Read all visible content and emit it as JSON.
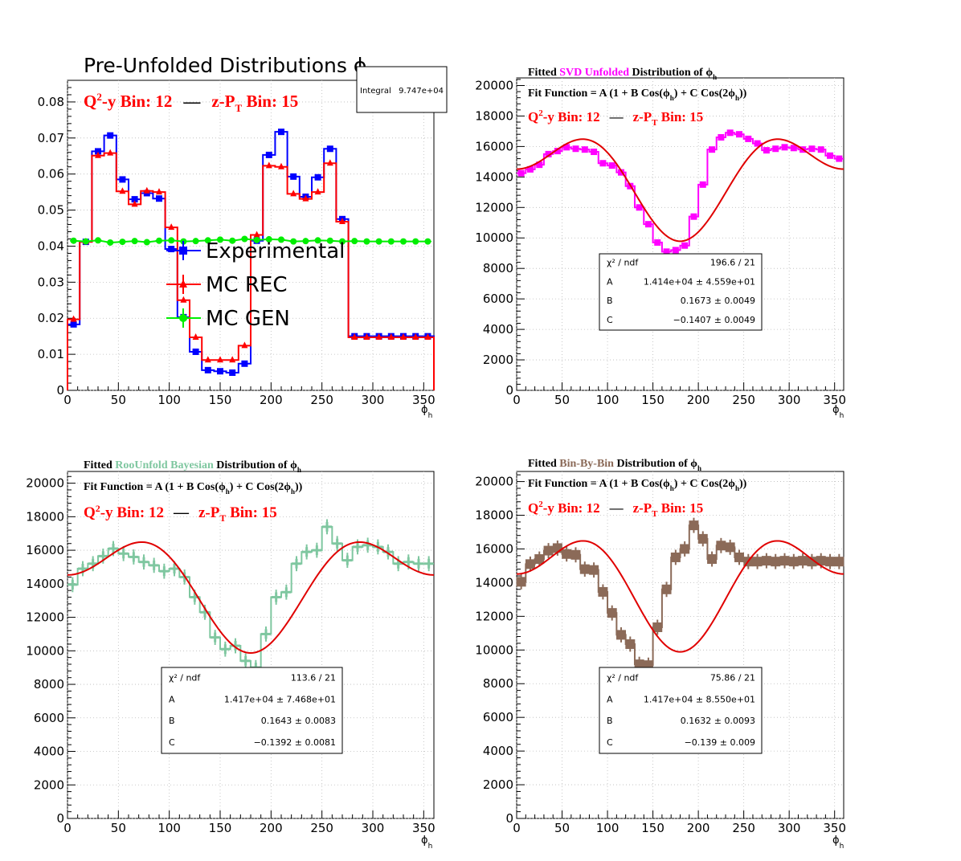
{
  "panels": [
    {
      "title_plain": "Pre-Unfolded Distributions ",
      "title_sym": "ϕ",
      "title_sub": "h",
      "title_accent": "",
      "title_accent_color": "",
      "title_post": "",
      "fit_line": "",
      "bin_line": {
        "q2y": "Q",
        "q2y_sup": "2",
        "q2y_rest": "-y Bin: 12",
        "dash": "—",
        "zpt": "z-P",
        "zpt_sub": "T",
        "zpt_rest": " Bin: 15"
      },
      "xlabel": "ϕ",
      "xlabel_sub": "h",
      "stats_box": {
        "label": "Integral",
        "value": "9.747e+04"
      },
      "legend": [
        {
          "name": "Experimental",
          "color": "#0000ff",
          "marker": "square"
        },
        {
          "name": "MC REC",
          "color": "#ff0000",
          "marker": "triangle"
        },
        {
          "name": "MC GEN",
          "color": "#00ee00",
          "marker": "circle"
        }
      ]
    },
    {
      "title_plain": "Fitted  ",
      "title_accent": "SVD Unfolded",
      "title_accent_color": "#ff00ff",
      "title_post": " Distribution of  ",
      "title_sym": "ϕ",
      "title_sub": "h",
      "fit_line": "Fit Function = A (1 + B Cos(ϕ",
      "fit_mid": ") + C Cos(2ϕ",
      "fit_end": "))",
      "bin_line": {
        "q2y": "Q",
        "q2y_sup": "2",
        "q2y_rest": "-y Bin: 12",
        "dash": "—",
        "zpt": "z-P",
        "zpt_sub": "T",
        "zpt_rest": " Bin: 15"
      },
      "xlabel": "ϕ",
      "xlabel_sub": "h",
      "fit_stats": [
        {
          "name": "χ² / ndf",
          "value": "196.6 / 21"
        },
        {
          "name": "A",
          "value": "1.414e+04  ± 4.559e+01"
        },
        {
          "name": "B",
          "value": "0.1673  ± 0.0049"
        },
        {
          "name": "C",
          "value": "−0.1407  ± 0.0049"
        }
      ]
    },
    {
      "title_plain": "Fitted  ",
      "title_accent": "RooUnfold Bayesian",
      "title_accent_color": "#7fc7a0",
      "title_post": " Distribution of  ",
      "title_sym": "ϕ",
      "title_sub": "h",
      "fit_line": "Fit Function = A (1 + B Cos(ϕ",
      "fit_mid": ") + C Cos(2ϕ",
      "fit_end": "))",
      "bin_line": {
        "q2y": "Q",
        "q2y_sup": "2",
        "q2y_rest": "-y Bin: 12",
        "dash": "—",
        "zpt": "z-P",
        "zpt_sub": "T",
        "zpt_rest": " Bin: 15"
      },
      "xlabel": "ϕ",
      "xlabel_sub": "h",
      "fit_stats": [
        {
          "name": "χ² / ndf",
          "value": "113.6 / 21"
        },
        {
          "name": "A",
          "value": "1.417e+04 ± 7.468e+01"
        },
        {
          "name": "B",
          "value": "0.1643 ± 0.0083"
        },
        {
          "name": "C",
          "value": "−0.1392 ± 0.0081"
        }
      ]
    },
    {
      "title_plain": "Fitted  ",
      "title_accent": "Bin-By-Bin",
      "title_accent_color": "#8b6a58",
      "title_post": " Distribution of  ",
      "title_sym": "ϕ",
      "title_sub": "h",
      "fit_line": "Fit Function = A (1 + B Cos(ϕ",
      "fit_mid": ") + C Cos(2ϕ",
      "fit_end": "))",
      "bin_line": {
        "q2y": "Q",
        "q2y_sup": "2",
        "q2y_rest": "-y Bin: 12",
        "dash": "—",
        "zpt": "z-P",
        "zpt_sub": "T",
        "zpt_rest": " Bin: 15"
      },
      "xlabel": "ϕ",
      "xlabel_sub": "h",
      "fit_stats": [
        {
          "name": "χ² / ndf",
          "value": "75.86 / 21"
        },
        {
          "name": "A",
          "value": "1.417e+04 ± 8.550e+01"
        },
        {
          "name": "B",
          "value": "0.1632 ± 0.0093"
        },
        {
          "name": "C",
          "value": "−0.139 ± 0.009"
        }
      ]
    }
  ],
  "chart_data": [
    {
      "type": "line",
      "title": "Pre-Unfolded Distributions ϕh",
      "xlabel": "ϕh",
      "xlim": [
        0,
        360
      ],
      "ylim": [
        0,
        0.086
      ],
      "x_ticks": [
        0,
        50,
        100,
        150,
        200,
        250,
        300,
        350
      ],
      "y_ticks": [
        0,
        0.01,
        0.02,
        0.03,
        0.04,
        0.05,
        0.06,
        0.07,
        0.08
      ],
      "y_tick_labels": [
        "0",
        "0.01",
        "0.02",
        "0.03",
        "0.04",
        "0.05",
        "0.06",
        "0.07",
        "0.08"
      ],
      "grid": true,
      "bin_edges": [
        0,
        12,
        24,
        36,
        48,
        60,
        72,
        84,
        96,
        108,
        120,
        132,
        144,
        156,
        168,
        180,
        192,
        204,
        216,
        228,
        240,
        252,
        264,
        276,
        288,
        300,
        312,
        324,
        336,
        348,
        360
      ],
      "series": [
        {
          "name": "Experimental",
          "color": "#0000ff",
          "marker": "square",
          "values": [
            0.0183,
            0.0412,
            0.0663,
            0.0707,
            0.0585,
            0.053,
            0.0547,
            0.0532,
            0.0392,
            0.0203,
            0.0107,
            0.0056,
            0.0053,
            0.0049,
            0.0074,
            0.0415,
            0.0653,
            0.0717,
            0.0593,
            0.0537,
            0.0591,
            0.067,
            0.0475,
            0.015,
            0.015,
            0.015,
            0.015,
            0.015,
            0.015,
            0.015
          ]
        },
        {
          "name": "MC REC",
          "color": "#ff0000",
          "marker": "triangle",
          "values": [
            0.0197,
            0.0412,
            0.0651,
            0.0658,
            0.0552,
            0.0516,
            0.0553,
            0.055,
            0.0452,
            0.025,
            0.0147,
            0.0084,
            0.0084,
            0.0084,
            0.0124,
            0.0431,
            0.0623,
            0.062,
            0.0545,
            0.0531,
            0.055,
            0.063,
            0.0468,
            0.0147,
            0.0147,
            0.0147,
            0.0147,
            0.0147,
            0.0147,
            0.0147
          ]
        },
        {
          "name": "MC GEN",
          "color": "#00ee00",
          "marker": "circle",
          "values": [
            0.0415,
            0.0413,
            0.0416,
            0.041,
            0.0412,
            0.0414,
            0.0411,
            0.0415,
            0.0416,
            0.0413,
            0.0414,
            0.0416,
            0.0418,
            0.0415,
            0.042,
            0.0417,
            0.0419,
            0.0418,
            0.0413,
            0.0414,
            0.0416,
            0.0415,
            0.0413,
            0.0414,
            0.0413,
            0.0413,
            0.0413,
            0.0413,
            0.0413,
            0.0413
          ]
        }
      ]
    },
    {
      "type": "line",
      "title": "Fitted SVD Unfolded Distribution of ϕh",
      "xlabel": "ϕh",
      "xlim": [
        0,
        360
      ],
      "ylim": [
        0,
        20500
      ],
      "x_ticks": [
        0,
        50,
        100,
        150,
        200,
        250,
        300,
        350
      ],
      "y_ticks": [
        0,
        2000,
        4000,
        6000,
        8000,
        10000,
        12000,
        14000,
        16000,
        18000,
        20000
      ],
      "grid": true,
      "x_centers": [
        5,
        15,
        25,
        35,
        45,
        55,
        65,
        75,
        85,
        95,
        105,
        115,
        125,
        135,
        145,
        155,
        165,
        175,
        185,
        195,
        205,
        215,
        225,
        235,
        245,
        255,
        265,
        275,
        285,
        295,
        305,
        315,
        325,
        335,
        345,
        355
      ],
      "series": [
        {
          "name": "SVD Unfolded",
          "color": "#ff00ff",
          "marker": "square",
          "values": [
            14250,
            14500,
            14800,
            15500,
            15700,
            15950,
            15850,
            15800,
            15650,
            14900,
            14750,
            14300,
            13400,
            12000,
            10900,
            9700,
            9100,
            9200,
            9500,
            11400,
            13500,
            15800,
            16600,
            16900,
            16800,
            16500,
            16200,
            15750,
            15850,
            15950,
            15900,
            15800,
            15850,
            15800,
            15400,
            15200
          ]
        },
        {
          "name": "Fit",
          "color": "#e00000",
          "A": 14140,
          "B": 0.1673,
          "C": -0.1407
        }
      ]
    },
    {
      "type": "line",
      "title": "Fitted RooUnfold Bayesian Distribution of ϕh",
      "xlabel": "ϕh",
      "xlim": [
        0,
        360
      ],
      "ylim": [
        0,
        20700
      ],
      "x_ticks": [
        0,
        50,
        100,
        150,
        200,
        250,
        300,
        350
      ],
      "y_ticks": [
        0,
        2000,
        4000,
        6000,
        8000,
        10000,
        12000,
        14000,
        16000,
        18000,
        20000
      ],
      "grid": true,
      "x_centers": [
        5,
        15,
        25,
        35,
        45,
        55,
        65,
        75,
        85,
        95,
        105,
        115,
        125,
        135,
        145,
        155,
        165,
        175,
        185,
        195,
        205,
        215,
        225,
        235,
        245,
        255,
        265,
        275,
        285,
        295,
        305,
        315,
        325,
        335,
        345,
        355
      ],
      "series": [
        {
          "name": "RooUnfold Bayesian",
          "color": "#7fc7a0",
          "marker": "cross",
          "values": [
            13950,
            14900,
            15200,
            15650,
            16100,
            15800,
            15600,
            15300,
            15100,
            14750,
            14900,
            14400,
            13200,
            12300,
            10800,
            10100,
            10300,
            9400,
            9000,
            11000,
            13200,
            13500,
            15200,
            15900,
            16000,
            17400,
            16400,
            15400,
            16200,
            16300,
            16200,
            15900,
            15200,
            15300,
            15200,
            15200
          ]
        },
        {
          "name": "Fit",
          "color": "#e00000",
          "A": 14170,
          "B": 0.1643,
          "C": -0.1392
        }
      ]
    },
    {
      "type": "line",
      "title": "Fitted Bin-By-Bin Distribution of ϕh",
      "xlabel": "ϕh",
      "xlim": [
        0,
        360
      ],
      "ylim": [
        0,
        20600
      ],
      "x_ticks": [
        0,
        50,
        100,
        150,
        200,
        250,
        300,
        350
      ],
      "y_ticks": [
        0,
        2000,
        4000,
        6000,
        8000,
        10000,
        12000,
        14000,
        16000,
        18000,
        20000
      ],
      "grid": true,
      "x_centers": [
        5,
        15,
        25,
        35,
        45,
        55,
        65,
        75,
        85,
        95,
        105,
        115,
        125,
        135,
        145,
        155,
        165,
        175,
        185,
        195,
        205,
        215,
        225,
        235,
        245,
        255,
        265,
        275,
        285,
        295,
        305,
        315,
        325,
        335,
        345,
        355
      ],
      "series": [
        {
          "name": "Bin-By-Bin",
          "color": "#8b6a58",
          "marker": "square",
          "values": [
            14050,
            15100,
            15400,
            15900,
            16050,
            15700,
            15650,
            14800,
            14750,
            13450,
            12200,
            10900,
            10350,
            9150,
            9100,
            11350,
            13600,
            15500,
            16000,
            17400,
            16600,
            15400,
            16200,
            16100,
            15500,
            15250,
            15250,
            15300,
            15250,
            15300,
            15250,
            15300,
            15250,
            15300,
            15250,
            15250
          ]
        },
        {
          "name": "Fit",
          "color": "#e00000",
          "A": 14170,
          "B": 0.1632,
          "C": -0.139
        }
      ]
    }
  ]
}
